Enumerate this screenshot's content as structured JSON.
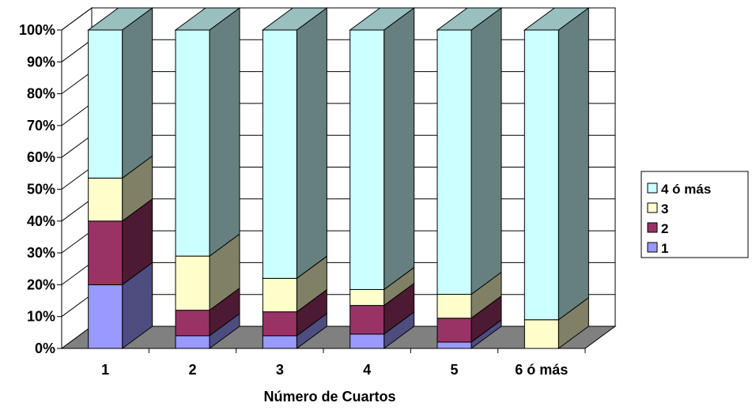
{
  "chart_data": {
    "type": "bar",
    "stacked": "percent",
    "three_d": true,
    "title": "",
    "xlabel": "Número de Cuartos",
    "ylabel": "",
    "categories": [
      "1",
      "2",
      "3",
      "4",
      "5",
      "6 ó más"
    ],
    "y_ticks": [
      "0%",
      "10%",
      "20%",
      "30%",
      "40%",
      "50%",
      "60%",
      "70%",
      "80%",
      "90%",
      "100%"
    ],
    "ylim": [
      0,
      100
    ],
    "grid": true,
    "legend_position": "right",
    "series": [
      {
        "name": "1",
        "color": "#9999ff",
        "values": [
          20,
          4,
          4,
          4.5,
          2,
          0
        ]
      },
      {
        "name": "2",
        "color": "#993366",
        "values": [
          20,
          8,
          7.5,
          9,
          7.5,
          0
        ]
      },
      {
        "name": "3",
        "color": "#ffffcc",
        "values": [
          13.5,
          17,
          10.5,
          5,
          7.5,
          9
        ]
      },
      {
        "name": "4 ó más",
        "color": "#ccffff",
        "values": [
          46.5,
          71,
          78,
          81.5,
          83,
          91
        ]
      }
    ]
  }
}
